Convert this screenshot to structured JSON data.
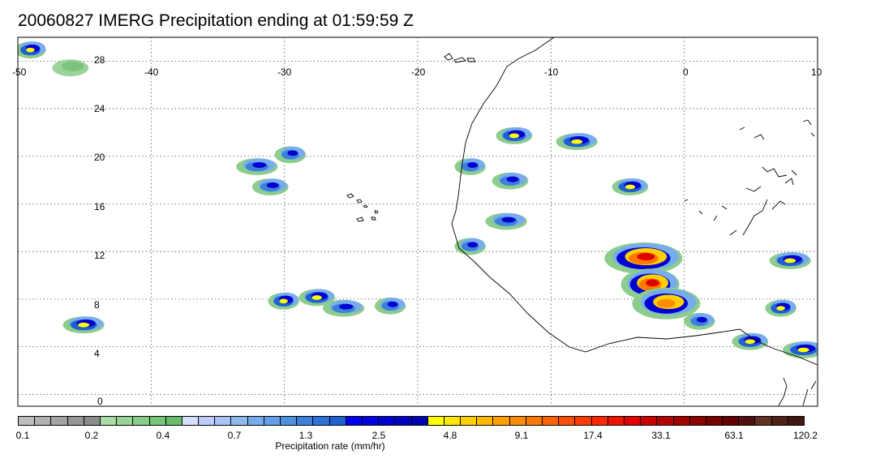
{
  "title": "20060827 IMERG Precipitation ending at 01:59:59 Z",
  "map": {
    "lon_range": [
      -50,
      10
    ],
    "lat_range": [
      -1,
      30
    ],
    "lon_ticks": [
      "-50",
      "-40",
      "-30",
      "-20",
      "-10",
      "0",
      "10"
    ],
    "lat_ticks": [
      "28",
      "24",
      "20",
      "16",
      "12",
      "8",
      "4",
      "0"
    ],
    "grid": "dotted",
    "coastline_color": "#000000"
  },
  "legend": {
    "colors": [
      "#bdbdbd",
      "#b0b0b0",
      "#a3a3a3",
      "#969696",
      "#8c8c8c",
      "#a8dba8",
      "#98d498",
      "#88cc88",
      "#78c478",
      "#68bc68",
      "#d8e0ff",
      "#c0ccff",
      "#a8c4f4",
      "#90b8ec",
      "#78acec",
      "#64a0e8",
      "#5090e0",
      "#3c80dc",
      "#2c70d8",
      "#2060d0",
      "#0000f0",
      "#0000e0",
      "#0000d0",
      "#0000c0",
      "#0000b0",
      "#ffff00",
      "#ffe800",
      "#ffd000",
      "#ffb800",
      "#ffa000",
      "#ff8c00",
      "#ff7800",
      "#ff6400",
      "#ff5000",
      "#ff3c00",
      "#ff2800",
      "#f01400",
      "#e00000",
      "#c80000",
      "#b40000",
      "#a00000",
      "#8c0000",
      "#780000",
      "#640000",
      "#501010",
      "#603020",
      "#502018",
      "#401810"
    ],
    "labels": [
      "0.1",
      "0.2",
      "0.4",
      "0.7",
      "1.3",
      "2.5",
      "4.8",
      "9.1",
      "17.4",
      "33.1",
      "63.1",
      "120.2"
    ],
    "unit_label": "Precipitation rate (mm/hr)"
  },
  "rain_cells": [
    {
      "lon": -49,
      "lat": 29,
      "peak": "yellow"
    },
    {
      "lon": -46,
      "lat": 27.5,
      "peak": "green"
    },
    {
      "lon": -32,
      "lat": 19.2,
      "peak": "blue"
    },
    {
      "lon": -29.5,
      "lat": 20.2,
      "peak": "blue"
    },
    {
      "lon": -31,
      "lat": 17.5,
      "peak": "blue"
    },
    {
      "lon": -45,
      "lat": 5.9,
      "peak": "yellow"
    },
    {
      "lon": -30,
      "lat": 7.9,
      "peak": "yellow"
    },
    {
      "lon": -27.5,
      "lat": 8.2,
      "peak": "yellow"
    },
    {
      "lon": -25.5,
      "lat": 7.3,
      "peak": "blue"
    },
    {
      "lon": -22,
      "lat": 7.5,
      "peak": "blue"
    },
    {
      "lon": -12.7,
      "lat": 21.8,
      "peak": "yellow"
    },
    {
      "lon": -8,
      "lat": 21.3,
      "peak": "yellow"
    },
    {
      "lon": -16,
      "lat": 19.2,
      "peak": "blue"
    },
    {
      "lon": -13,
      "lat": 18,
      "peak": "blue"
    },
    {
      "lon": -13.3,
      "lat": 14.6,
      "peak": "blue"
    },
    {
      "lon": -16,
      "lat": 12.5,
      "peak": "blue"
    },
    {
      "lon": -4,
      "lat": 17.5,
      "peak": "yellow"
    },
    {
      "lon": -3,
      "lat": 11.5,
      "peak": "red"
    },
    {
      "lon": -2.5,
      "lat": 9.3,
      "peak": "red"
    },
    {
      "lon": -1.3,
      "lat": 7.7,
      "peak": "orange"
    },
    {
      "lon": 8,
      "lat": 11.3,
      "peak": "yellow"
    },
    {
      "lon": 7.3,
      "lat": 7.3,
      "peak": "yellow"
    },
    {
      "lon": 5,
      "lat": 4.5,
      "peak": "yellow"
    },
    {
      "lon": 9,
      "lat": 3.8,
      "peak": "yellow"
    },
    {
      "lon": 1.2,
      "lat": 6.2,
      "peak": "blue"
    }
  ]
}
